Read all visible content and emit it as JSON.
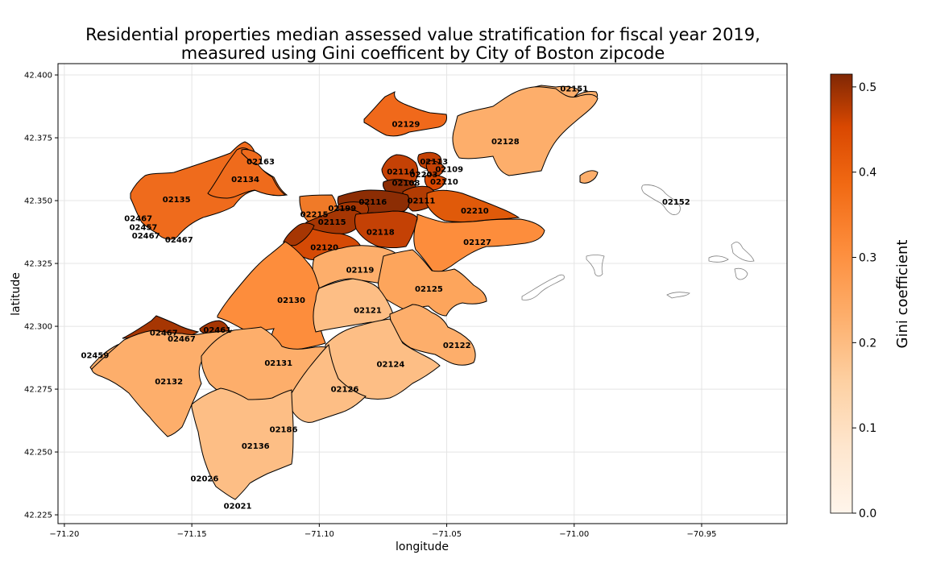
{
  "chart_data": {
    "type": "choropleth",
    "title_line1": "Residential properties median assessed value stratification for fiscal year 2019,",
    "title_line2": "measured using Gini coefficent by City of Boston zipcode",
    "xlabel": "longitude",
    "ylabel": "latitude",
    "xlim": [
      -71.2025,
      -70.9165
    ],
    "ylim": [
      42.2215,
      42.4045
    ],
    "x_ticks": [
      -71.2,
      -71.15,
      -71.1,
      -71.05,
      -71.0,
      -70.95
    ],
    "x_tick_labels": [
      "−71.20",
      "−71.15",
      "−71.10",
      "−71.05",
      "−71.00",
      "−70.95"
    ],
    "y_ticks": [
      42.225,
      42.25,
      42.275,
      42.3,
      42.325,
      42.35,
      42.375,
      42.4
    ],
    "y_tick_labels": [
      "42.225",
      "42.250",
      "42.275",
      "42.300",
      "42.325",
      "42.350",
      "42.375",
      "42.400"
    ],
    "grid": true,
    "colorbar": {
      "label": "Gini coefficient",
      "colormap": "Oranges",
      "min": 0.0,
      "max": 0.515,
      "ticks": [
        0.0,
        0.1,
        0.2,
        0.3,
        0.4,
        0.5
      ],
      "tick_labels": [
        "0.0",
        "0.1",
        "0.2",
        "0.3",
        "0.4",
        "0.5"
      ]
    },
    "regions": [
      {
        "zip": "02151",
        "lon": -71.0,
        "lat": 42.3945,
        "gini": 0.18
      },
      {
        "zip": "02129",
        "lon": -71.066,
        "lat": 42.3805,
        "gini": 0.31
      },
      {
        "zip": "02128",
        "lon": -71.027,
        "lat": 42.3735,
        "gini": 0.19
      },
      {
        "zip": "02163",
        "lon": -71.123,
        "lat": 42.3655,
        "gini": 0.3
      },
      {
        "zip": "02134",
        "lon": -71.129,
        "lat": 42.3585,
        "gini": 0.3
      },
      {
        "zip": "02113",
        "lon": -71.055,
        "lat": 42.3655,
        "gini": 0.45
      },
      {
        "zip": "02109",
        "lon": -71.049,
        "lat": 42.3625,
        "gini": 0.42
      },
      {
        "zip": "02114",
        "lon": -71.068,
        "lat": 42.3615,
        "gini": 0.42
      },
      {
        "zip": "02203",
        "lon": -71.059,
        "lat": 42.3605,
        "gini": 0.45
      },
      {
        "zip": "02110",
        "lon": -71.051,
        "lat": 42.3575,
        "gini": 0.4
      },
      {
        "zip": "02108",
        "lon": -71.066,
        "lat": 42.357,
        "gini": 0.5
      },
      {
        "zip": "02135",
        "lon": -71.156,
        "lat": 42.3505,
        "gini": 0.3
      },
      {
        "zip": "02116",
        "lon": -71.079,
        "lat": 42.3495,
        "gini": 0.48
      },
      {
        "zip": "02111",
        "lon": -71.06,
        "lat": 42.35,
        "gini": 0.45
      },
      {
        "zip": "02152",
        "lon": -70.96,
        "lat": 42.3495,
        "gini": 0.0
      },
      {
        "zip": "02199",
        "lon": -71.091,
        "lat": 42.347,
        "gini": 0.48
      },
      {
        "zip": "02210",
        "lon": -71.039,
        "lat": 42.346,
        "gini": 0.36
      },
      {
        "zip": "02215",
        "lon": -71.102,
        "lat": 42.3445,
        "gini": 0.28
      },
      {
        "zip": "02467",
        "lon": -71.171,
        "lat": 42.343,
        "gini": 0.3
      },
      {
        "zip": "02115",
        "lon": -71.095,
        "lat": 42.3415,
        "gini": 0.46
      },
      {
        "zip": "02457",
        "lon": -71.169,
        "lat": 42.3395,
        "gini": 0.3
      },
      {
        "zip": "02118",
        "lon": -71.076,
        "lat": 42.3375,
        "gini": 0.42
      },
      {
        "zip": "02467",
        "lon": -71.168,
        "lat": 42.336,
        "gini": 0.3
      },
      {
        "zip": "02467",
        "lon": -71.155,
        "lat": 42.3345,
        "gini": 0.3
      },
      {
        "zip": "02127",
        "lon": -71.038,
        "lat": 42.3335,
        "gini": 0.27
      },
      {
        "zip": "02120",
        "lon": -71.098,
        "lat": 42.3315,
        "gini": 0.43
      },
      {
        "zip": "02119",
        "lon": -71.084,
        "lat": 42.3225,
        "gini": 0.2
      },
      {
        "zip": "02125",
        "lon": -71.057,
        "lat": 42.315,
        "gini": 0.2
      },
      {
        "zip": "02130",
        "lon": -71.111,
        "lat": 42.3105,
        "gini": 0.26
      },
      {
        "zip": "02121",
        "lon": -71.081,
        "lat": 42.3065,
        "gini": 0.17
      },
      {
        "zip": "02461",
        "lon": -71.14,
        "lat": 42.2985,
        "gini": 0.45
      },
      {
        "zip": "02467",
        "lon": -71.161,
        "lat": 42.2975,
        "gini": 0.45
      },
      {
        "zip": "02467",
        "lon": -71.154,
        "lat": 42.295,
        "gini": 0.45
      },
      {
        "zip": "02122",
        "lon": -71.046,
        "lat": 42.2925,
        "gini": 0.19
      },
      {
        "zip": "02459",
        "lon": -71.188,
        "lat": 42.2885,
        "gini": 0.19
      },
      {
        "zip": "02131",
        "lon": -71.116,
        "lat": 42.2855,
        "gini": 0.18
      },
      {
        "zip": "02124",
        "lon": -71.072,
        "lat": 42.285,
        "gini": 0.18
      },
      {
        "zip": "02132",
        "lon": -71.159,
        "lat": 42.278,
        "gini": 0.18
      },
      {
        "zip": "02126",
        "lon": -71.09,
        "lat": 42.275,
        "gini": 0.17
      },
      {
        "zip": "02186",
        "lon": -71.114,
        "lat": 42.259,
        "gini": 0.17
      },
      {
        "zip": "02136",
        "lon": -71.125,
        "lat": 42.2525,
        "gini": 0.18
      },
      {
        "zip": "02026",
        "lon": -71.145,
        "lat": 42.2395,
        "gini": 0.17
      },
      {
        "zip": "02021",
        "lon": -71.132,
        "lat": 42.2285,
        "gini": 0.17
      }
    ]
  }
}
